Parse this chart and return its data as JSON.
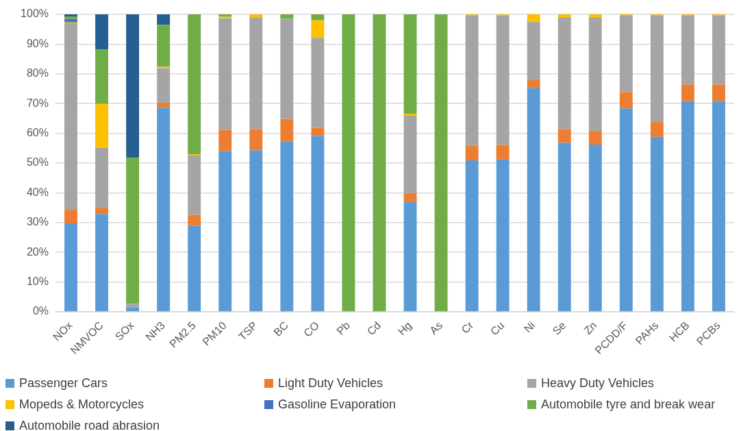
{
  "chart_data": {
    "type": "bar",
    "stacked": true,
    "grid": "y",
    "legend": "bottom",
    "categories": [
      "NOx",
      "NMVOC",
      "SOx",
      "NH3",
      "PM2.5",
      "PM10",
      "TSP",
      "BC",
      "CO",
      "Pb",
      "Cd",
      "Hg",
      "As",
      "Cr",
      "Cu",
      "Ni",
      "Se",
      "Zn",
      "PCDD/F",
      "PAHs",
      "HCB",
      "PCBs"
    ],
    "ylim": [
      0,
      100
    ],
    "yticks": [
      {
        "value": 0,
        "label": "0%"
      },
      {
        "value": 10,
        "label": "10%"
      },
      {
        "value": 20,
        "label": "20%"
      },
      {
        "value": 30,
        "label": "30%"
      },
      {
        "value": 40,
        "label": "40%"
      },
      {
        "value": 50,
        "label": "50%"
      },
      {
        "value": 60,
        "label": "60%"
      },
      {
        "value": 70,
        "label": "70%"
      },
      {
        "value": 80,
        "label": "80%"
      },
      {
        "value": 90,
        "label": "90%"
      },
      {
        "value": 100,
        "label": "100%"
      }
    ],
    "series": [
      {
        "name": "Passenger Cars",
        "color": "#5b9bd5",
        "values": [
          29.7,
          32.9,
          1.5,
          68.6,
          29.0,
          54.1,
          54.3,
          57.3,
          59.1,
          0,
          0,
          36.9,
          0,
          50.9,
          51.2,
          75.3,
          56.8,
          56.2,
          68.4,
          58.8,
          70.9,
          70.9
        ]
      },
      {
        "name": "Light Duty Vehicles",
        "color": "#ed7d31",
        "values": [
          4.6,
          2.1,
          0,
          1.7,
          3.6,
          7.0,
          7.1,
          7.6,
          2.7,
          0,
          0,
          3.0,
          0,
          5.0,
          4.9,
          2.6,
          4.6,
          4.6,
          5.5,
          5.0,
          5.5,
          5.5
        ]
      },
      {
        "name": "Heavy Duty Vehicles",
        "color": "#a5a5a5",
        "values": [
          62.7,
          20.2,
          1.2,
          11.6,
          20.0,
          37.6,
          37.6,
          33.6,
          30.3,
          0,
          0,
          26.2,
          0,
          43.8,
          43.6,
          19.7,
          37.6,
          38.2,
          25.8,
          35.9,
          23.3,
          23.3
        ]
      },
      {
        "name": "Mopeds & Motorcycles",
        "color": "#ffc000",
        "values": [
          0.3,
          14.7,
          0,
          0.5,
          0.4,
          0.5,
          1.0,
          0,
          5.9,
          0,
          0,
          0.5,
          0,
          0.3,
          0.3,
          2.4,
          1.0,
          1.0,
          0.3,
          0.3,
          0.3,
          0.3
        ]
      },
      {
        "name": "Gasoline Evaporation",
        "color": "#4472c4",
        "values": [
          1.2,
          0,
          0,
          0,
          0,
          0,
          0,
          0,
          0,
          0,
          0,
          0,
          0,
          0,
          0,
          0,
          0,
          0,
          0,
          0,
          0,
          0
        ]
      },
      {
        "name": "Automobile tyre and break wear",
        "color": "#70ad47",
        "values": [
          0.8,
          18.3,
          49.1,
          14.1,
          47.0,
          0.8,
          0,
          1.5,
          2.0,
          100,
          100,
          33.4,
          100,
          0,
          0,
          0,
          0,
          0,
          0,
          0,
          0,
          0
        ]
      },
      {
        "name": "Automobile road abrasion",
        "color": "#255e91",
        "values": [
          0.7,
          11.8,
          48.2,
          3.5,
          0,
          0,
          0,
          0,
          0,
          0,
          0,
          0,
          0,
          0,
          0,
          0,
          0,
          0,
          0,
          0,
          0,
          0
        ]
      }
    ]
  }
}
